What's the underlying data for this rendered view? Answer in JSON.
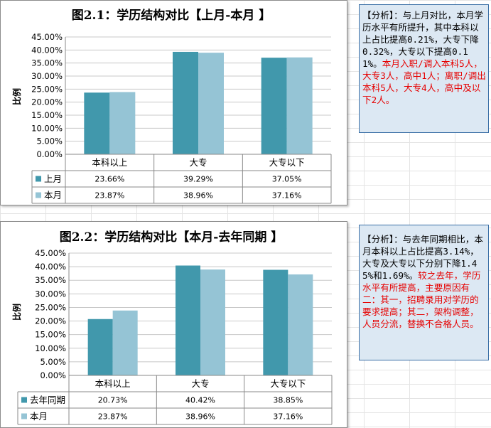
{
  "chart_data": [
    {
      "type": "bar",
      "title": "图2.1：学历结构对比【上月-本月 】",
      "ylabel": "比例",
      "ylim": [
        0,
        45
      ],
      "yticks": [
        "0.00%",
        "5.00%",
        "10.00%",
        "15.00%",
        "20.00%",
        "25.00%",
        "30.00%",
        "35.00%",
        "40.00%",
        "45.00%"
      ],
      "categories": [
        "本科以上",
        "大专",
        "大专以下"
      ],
      "series": [
        {
          "name": "上月",
          "values": [
            23.66,
            39.29,
            37.05
          ],
          "labels": [
            "23.66%",
            "39.29%",
            "37.05%"
          ],
          "color": "#4198ac"
        },
        {
          "name": "本月",
          "values": [
            23.87,
            38.96,
            37.16
          ],
          "labels": [
            "23.87%",
            "38.96%",
            "37.16%"
          ],
          "color": "#95c4d5"
        }
      ],
      "grid": true,
      "legend": "data-table"
    },
    {
      "type": "bar",
      "title": "图2.2：学历结构对比【本月-去年同期 】",
      "ylabel": "比例",
      "ylim": [
        0,
        45
      ],
      "yticks": [
        "0.00%",
        "5.00%",
        "10.00%",
        "15.00%",
        "20.00%",
        "25.00%",
        "30.00%",
        "35.00%",
        "40.00%",
        "45.00%"
      ],
      "categories": [
        "本科以上",
        "大专",
        "大专以下"
      ],
      "series": [
        {
          "name": "去年同期",
          "values": [
            20.73,
            40.42,
            38.85
          ],
          "labels": [
            "20.73%",
            "40.42%",
            "38.85%"
          ],
          "color": "#4198ac"
        },
        {
          "name": "本月",
          "values": [
            23.87,
            38.96,
            37.16
          ],
          "labels": [
            "23.87%",
            "38.96%",
            "37.16%"
          ],
          "color": "#95c4d5"
        }
      ],
      "grid": true,
      "legend": "data-table"
    }
  ],
  "notes": [
    {
      "black": "【分析】：与上月对比，本月学历水平有所提升，其中本科以上占比提高0.21%，大专下降0.32%，大专以下提高0.11%。",
      "red": "本月入职/调入本科5人，大专3人，高中1人；离职/调出本科5人，大专4人，高中及以下2人。"
    },
    {
      "black": "【分析】：与去年同期相比，本月本科以上占比提高3.14%，大专及大专以下分别下降1.45%和1.69%。",
      "red": "较之去年，学历水平有所提高，主要原因有二：其一，招聘录用对学历的要求提高；其二，架构调整，人员分流，替换不合格人员。"
    }
  ]
}
